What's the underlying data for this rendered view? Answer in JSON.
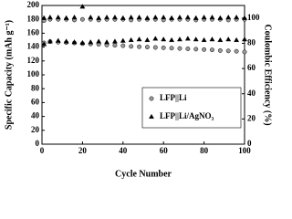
{
  "chart_data": {
    "type": "scatter",
    "xlabel": "Cycle Number",
    "ylabel": "Specific Capacity (mAh g⁻¹)",
    "y2label": "Coulombic Efficiency (%)",
    "xlim": [
      0,
      100
    ],
    "xticks": [
      0,
      20,
      40,
      60,
      80,
      100
    ],
    "ylim": [
      0,
      200
    ],
    "yticks": [
      0,
      20,
      40,
      60,
      80,
      100,
      120,
      140,
      160,
      180,
      200
    ],
    "y2lim": [
      0,
      110
    ],
    "y2ticks": [
      0,
      20,
      40,
      60,
      80,
      100
    ],
    "x": [
      1,
      4,
      8,
      12,
      16,
      20,
      24,
      28,
      32,
      36,
      40,
      44,
      48,
      52,
      56,
      60,
      64,
      68,
      72,
      76,
      80,
      84,
      88,
      92,
      96,
      100
    ],
    "series": [
      {
        "name": "LFP||Li",
        "marker": "circle",
        "color": "#999999",
        "values": [
          146,
          148,
          147,
          146.5,
          146,
          145,
          144.5,
          144,
          143,
          142.5,
          142,
          141,
          140.5,
          140,
          139.5,
          139,
          138.5,
          138,
          137.5,
          137,
          136.5,
          136,
          135,
          134.5,
          134,
          133
        ]
      },
      {
        "name": "LFP||Li/AgNO₃",
        "marker": "triangle",
        "color": "#000000",
        "values": [
          144,
          148,
          149,
          148,
          147,
          146,
          147,
          148,
          147,
          148,
          149,
          150,
          151,
          150,
          152,
          151,
          150,
          151,
          152,
          151,
          150,
          151,
          150,
          151,
          150,
          151
        ]
      },
      {
        "name": "LFP||Li",
        "marker": "circle",
        "color": "#999999",
        "axis": "y2",
        "values": [
          98,
          99,
          99,
          99,
          98.5,
          99,
          99,
          98.5,
          99,
          99,
          99,
          98.5,
          99,
          99,
          99,
          98.5,
          99,
          99,
          99,
          98.5,
          99,
          99,
          99,
          98.5,
          99,
          99
        ]
      },
      {
        "name": "LFP||Li/AgNO₃",
        "marker": "triangle",
        "color": "#000000",
        "axis": "y2",
        "values": [
          100,
          100.5,
          100.5,
          100,
          100.5,
          109,
          100.5,
          100,
          100.5,
          100.5,
          100,
          100.5,
          100.5,
          100,
          100.5,
          100.5,
          100,
          100.5,
          100.5,
          100,
          100.5,
          100.5,
          100,
          100.5,
          100.5,
          100
        ]
      }
    ]
  }
}
